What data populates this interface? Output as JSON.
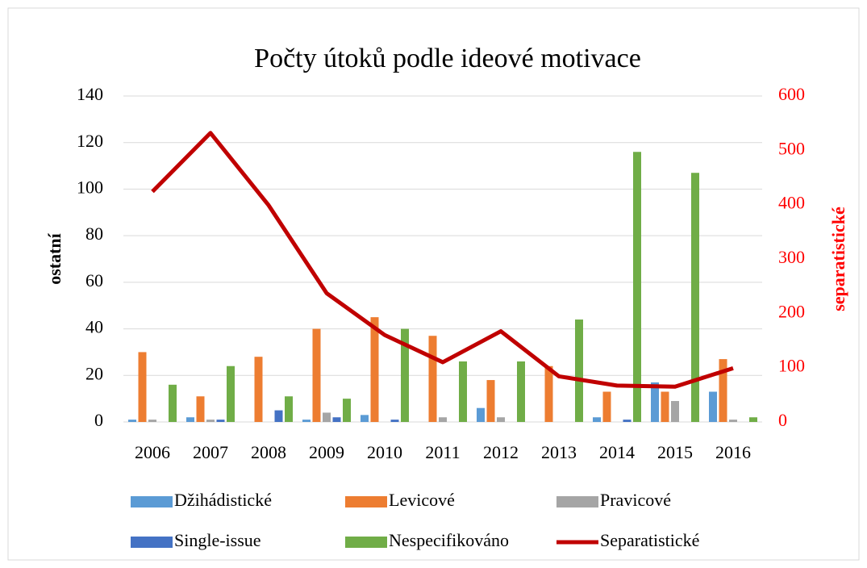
{
  "chart_data": {
    "type": "bar",
    "title": "Počty útoků podle ideové motivace",
    "ylabel": "ostatní",
    "y2label": "separatistické",
    "categories": [
      "2006",
      "2007",
      "2008",
      "2009",
      "2010",
      "2011",
      "2012",
      "2013",
      "2014",
      "2015",
      "2016"
    ],
    "series": [
      {
        "name": "Džihádistické",
        "color": "#5b9bd5",
        "values": [
          1,
          2,
          0,
          1,
          3,
          0,
          6,
          0,
          2,
          17,
          13
        ]
      },
      {
        "name": "Levicové",
        "color": "#ed7d31",
        "values": [
          30,
          11,
          28,
          40,
          45,
          37,
          18,
          24,
          13,
          13,
          27
        ]
      },
      {
        "name": "Pravicové",
        "color": "#a5a5a5",
        "values": [
          1,
          1,
          0,
          4,
          0,
          2,
          2,
          0,
          0,
          9,
          1
        ]
      },
      {
        "name": "Single-issue",
        "color": "#4472c4",
        "values": [
          0,
          1,
          5,
          2,
          1,
          0,
          0,
          0,
          1,
          0,
          0
        ]
      },
      {
        "name": "Nespecifikováno",
        "color": "#70ad47",
        "values": [
          16,
          24,
          11,
          10,
          40,
          26,
          26,
          44,
          116,
          107,
          2
        ]
      },
      {
        "name": "Separatistické",
        "color": "#c00000",
        "type": "line",
        "axis": "y2",
        "values": [
          424,
          532,
          399,
          237,
          160,
          110,
          167,
          84,
          67,
          65,
          99
        ]
      }
    ],
    "ylim": [
      0,
      140
    ],
    "yticks": [
      0,
      20,
      40,
      60,
      80,
      100,
      120,
      140
    ],
    "y2lim": [
      0,
      600
    ],
    "y2ticks": [
      0,
      100,
      200,
      300,
      400,
      500,
      600
    ],
    "y2color": "#ff0000",
    "grid": true,
    "legend": "bottom"
  }
}
